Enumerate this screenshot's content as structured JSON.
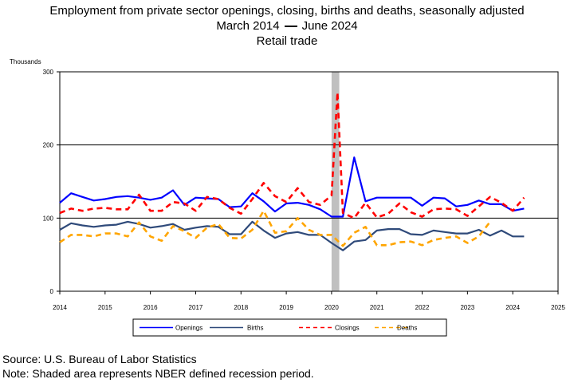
{
  "header": {
    "title": "Employment from private sector openings, closing, births and deaths, seasonally adjusted",
    "range_start": "March 2014",
    "range_end": "June 2024",
    "industry": "Retail trade"
  },
  "footer": {
    "source": "Source: U.S. Bureau of Labor Statistics",
    "note": "Note: Shaded area represents NBER defined recession period."
  },
  "chart_data": {
    "type": "line",
    "ylabel": "Thousands",
    "ylim": [
      0,
      300
    ],
    "xlim": [
      2014,
      2025
    ],
    "yticks": [
      "0",
      "100",
      "200",
      "300"
    ],
    "xticks": [
      "2014",
      "2015",
      "2016",
      "2017",
      "2018",
      "2019",
      "2020",
      "2021",
      "2022",
      "2023",
      "2024",
      "2025"
    ],
    "grid": "horizontal at 100 and 200",
    "recession": {
      "start": 2020.0,
      "end": 2020.17,
      "color": "#c0c0c0"
    },
    "legend_position": "bottom",
    "series": [
      {
        "name": "Openings",
        "color": "#0000ff",
        "dash": "solid",
        "x": [
          2014.0,
          2014.25,
          2014.5,
          2014.75,
          2015.0,
          2015.25,
          2015.5,
          2015.75,
          2016.0,
          2016.25,
          2016.5,
          2016.75,
          2017.0,
          2017.25,
          2017.5,
          2017.75,
          2018.0,
          2018.25,
          2018.5,
          2018.75,
          2019.0,
          2019.25,
          2019.5,
          2019.75,
          2020.0,
          2020.25,
          2020.5,
          2020.75,
          2021.0,
          2021.25,
          2021.5,
          2021.75,
          2022.0,
          2022.25,
          2022.5,
          2022.75,
          2023.0,
          2023.25,
          2023.5,
          2023.75,
          2024.0,
          2024.25
        ],
        "y": [
          121,
          134,
          129,
          124,
          126,
          129,
          130,
          128,
          125,
          128,
          138,
          118,
          128,
          127,
          126,
          115,
          116,
          134,
          123,
          109,
          120,
          121,
          118,
          112,
          102,
          102,
          183,
          123,
          128,
          128,
          128,
          128,
          117,
          128,
          127,
          116,
          118,
          124,
          119,
          119,
          110,
          113
        ]
      },
      {
        "name": "Births",
        "color": "#2f4a7a",
        "dash": "solid",
        "x": [
          2014.0,
          2014.25,
          2014.5,
          2014.75,
          2015.0,
          2015.25,
          2015.5,
          2015.75,
          2016.0,
          2016.25,
          2016.5,
          2016.75,
          2017.0,
          2017.25,
          2017.5,
          2017.75,
          2018.0,
          2018.25,
          2018.5,
          2018.75,
          2019.0,
          2019.25,
          2019.5,
          2019.75,
          2020.0,
          2020.25,
          2020.5,
          2020.75,
          2021.0,
          2021.25,
          2021.5,
          2021.75,
          2022.0,
          2022.25,
          2022.5,
          2022.75,
          2023.0,
          2023.25,
          2023.5,
          2023.75,
          2024.0,
          2024.25
        ],
        "y": [
          84,
          93,
          90,
          88,
          90,
          91,
          95,
          92,
          87,
          89,
          92,
          84,
          87,
          89,
          88,
          78,
          78,
          95,
          83,
          73,
          79,
          81,
          77,
          77,
          66,
          56,
          68,
          70,
          83,
          85,
          85,
          78,
          77,
          83,
          81,
          79,
          79,
          84,
          76,
          83,
          75,
          75
        ]
      },
      {
        "name": "Closings",
        "color": "#ff0000",
        "dash": "dashed",
        "x": [
          2014.0,
          2014.25,
          2014.5,
          2014.75,
          2015.0,
          2015.25,
          2015.5,
          2015.75,
          2016.0,
          2016.25,
          2016.5,
          2016.75,
          2017.0,
          2017.25,
          2017.5,
          2017.75,
          2018.0,
          2018.25,
          2018.5,
          2018.75,
          2019.0,
          2019.25,
          2019.5,
          2019.75,
          2020.0,
          2020.13,
          2020.25,
          2020.5,
          2020.75,
          2021.0,
          2021.25,
          2021.5,
          2021.75,
          2022.0,
          2022.25,
          2022.5,
          2022.75,
          2023.0,
          2023.25,
          2023.5,
          2023.75,
          2024.0,
          2024.25
        ],
        "y": [
          107,
          113,
          110,
          113,
          114,
          112,
          112,
          132,
          110,
          110,
          122,
          120,
          110,
          129,
          126,
          114,
          106,
          126,
          148,
          130,
          122,
          141,
          122,
          118,
          131,
          272,
          107,
          100,
          121,
          101,
          106,
          120,
          108,
          102,
          112,
          113,
          112,
          103,
          116,
          129,
          121,
          110,
          128
        ]
      },
      {
        "name": "Deaths",
        "color": "#ffa500",
        "dash": "dashed",
        "x": [
          2014.0,
          2014.25,
          2014.5,
          2014.75,
          2015.0,
          2015.25,
          2015.5,
          2015.75,
          2016.0,
          2016.25,
          2016.5,
          2016.75,
          2017.0,
          2017.25,
          2017.5,
          2017.75,
          2018.0,
          2018.25,
          2018.5,
          2018.75,
          2019.0,
          2019.25,
          2019.5,
          2019.75,
          2020.0,
          2020.25,
          2020.5,
          2020.75,
          2021.0,
          2021.25,
          2021.5,
          2021.75,
          2022.0,
          2022.25,
          2022.5,
          2022.75,
          2023.0,
          2023.25,
          2023.5,
          2023.75,
          2024.0,
          2024.25
        ],
        "y": [
          67,
          77,
          77,
          75,
          79,
          79,
          75,
          94,
          75,
          69,
          89,
          82,
          73,
          87,
          92,
          73,
          72,
          84,
          110,
          80,
          82,
          100,
          84,
          77,
          77,
          62,
          80,
          88,
          63,
          63,
          67,
          68,
          63,
          70,
          73,
          75,
          66,
          75,
          95,
          null,
          null,
          null
        ]
      }
    ]
  }
}
